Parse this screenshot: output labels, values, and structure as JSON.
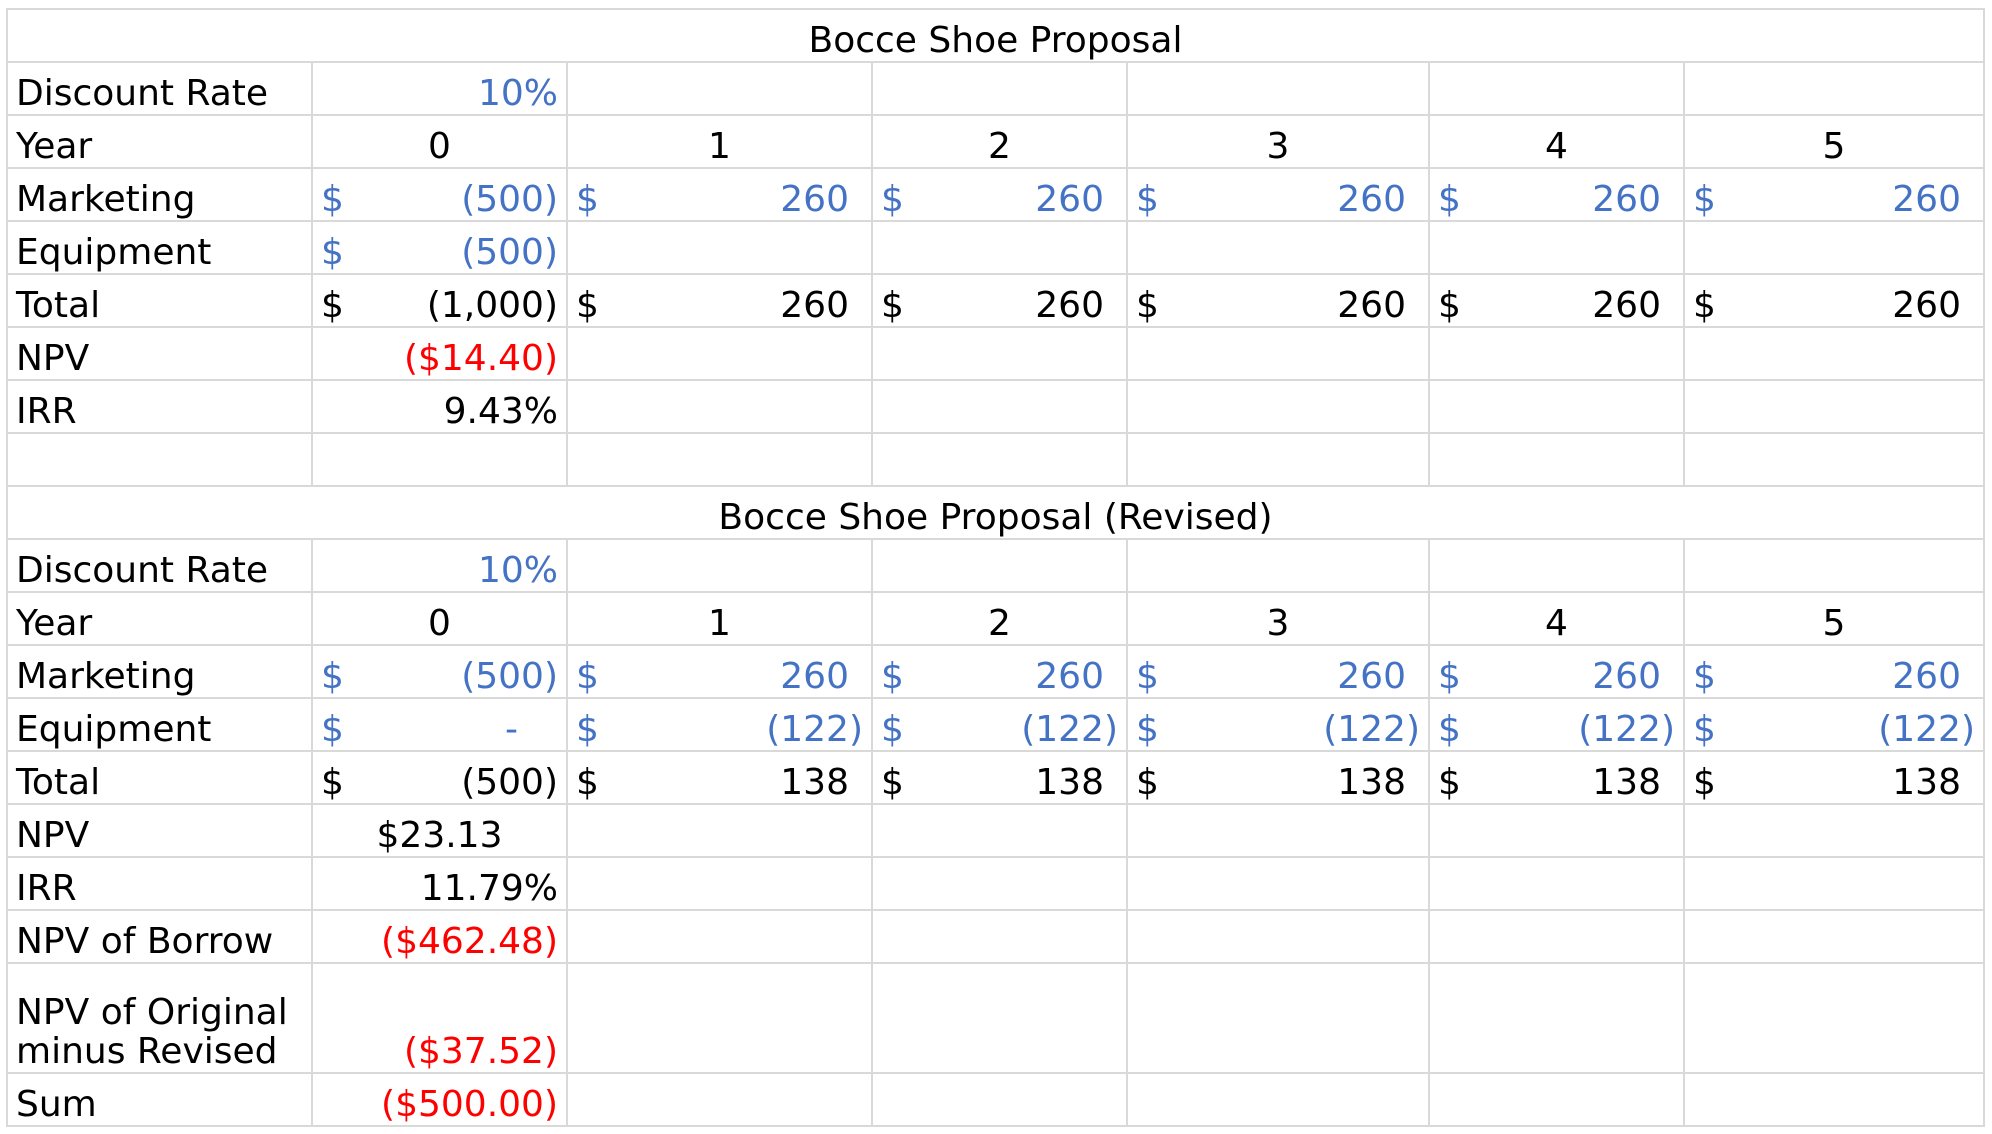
{
  "colors": {
    "input": "#4472c4",
    "negative": "#ff0000",
    "gridline": "#d9d9d9",
    "text": "#000000"
  },
  "original": {
    "title": "Bocce Shoe Proposal",
    "discount_label": "Discount Rate",
    "discount_rate": "10%",
    "year_label": "Year",
    "years": [
      "0",
      "1",
      "2",
      "3",
      "4",
      "5"
    ],
    "rows": [
      {
        "label": "Marketing",
        "style": "input",
        "cells": [
          {
            "cur": "$",
            "num": "(500)",
            "neg": true
          },
          {
            "cur": "$",
            "num": "260",
            "neg": false
          },
          {
            "cur": "$",
            "num": "260",
            "neg": false
          },
          {
            "cur": "$",
            "num": "260",
            "neg": false
          },
          {
            "cur": "$",
            "num": "260",
            "neg": false
          },
          {
            "cur": "$",
            "num": "260",
            "neg": false
          }
        ]
      },
      {
        "label": "Equipment",
        "style": "input",
        "cells": [
          {
            "cur": "$",
            "num": "(500)",
            "neg": true
          },
          null,
          null,
          null,
          null,
          null
        ]
      },
      {
        "label": "Total",
        "style": "calc",
        "cells": [
          {
            "cur": "$",
            "num": "(1,000)",
            "neg": true
          },
          {
            "cur": "$",
            "num": "260",
            "neg": false
          },
          {
            "cur": "$",
            "num": "260",
            "neg": false
          },
          {
            "cur": "$",
            "num": "260",
            "neg": false
          },
          {
            "cur": "$",
            "num": "260",
            "neg": false
          },
          {
            "cur": "$",
            "num": "260",
            "neg": false
          }
        ]
      }
    ],
    "summary": [
      {
        "label": "NPV",
        "value": "($14.40)",
        "color": "red"
      },
      {
        "label": "IRR",
        "value": "9.43%",
        "color": "black"
      }
    ]
  },
  "revised": {
    "title": "Bocce Shoe Proposal (Revised)",
    "discount_label": "Discount Rate",
    "discount_rate": "10%",
    "year_label": "Year",
    "years": [
      "0",
      "1",
      "2",
      "3",
      "4",
      "5"
    ],
    "rows": [
      {
        "label": "Marketing",
        "style": "input",
        "cells": [
          {
            "cur": "$",
            "num": "(500)",
            "neg": true
          },
          {
            "cur": "$",
            "num": "260",
            "neg": false
          },
          {
            "cur": "$",
            "num": "260",
            "neg": false
          },
          {
            "cur": "$",
            "num": "260",
            "neg": false
          },
          {
            "cur": "$",
            "num": "260",
            "neg": false
          },
          {
            "cur": "$",
            "num": "260",
            "neg": false
          }
        ]
      },
      {
        "label": "Equipment",
        "style": "input",
        "cells": [
          {
            "cur": "$",
            "num": "-",
            "neg": false,
            "dash": true
          },
          {
            "cur": "$",
            "num": "(122)",
            "neg": true
          },
          {
            "cur": "$",
            "num": "(122)",
            "neg": true
          },
          {
            "cur": "$",
            "num": "(122)",
            "neg": true
          },
          {
            "cur": "$",
            "num": "(122)",
            "neg": true
          },
          {
            "cur": "$",
            "num": "(122)",
            "neg": true
          }
        ]
      },
      {
        "label": "Total",
        "style": "calc",
        "cells": [
          {
            "cur": "$",
            "num": "(500)",
            "neg": true
          },
          {
            "cur": "$",
            "num": "138",
            "neg": false
          },
          {
            "cur": "$",
            "num": "138",
            "neg": false
          },
          {
            "cur": "$",
            "num": "138",
            "neg": false
          },
          {
            "cur": "$",
            "num": "138",
            "neg": false
          },
          {
            "cur": "$",
            "num": "138",
            "neg": false
          }
        ]
      }
    ],
    "summary": [
      {
        "label": "NPV",
        "value": "$23.13",
        "color": "black",
        "align": "center"
      },
      {
        "label": "IRR",
        "value": "11.79%",
        "color": "black"
      },
      {
        "label": "NPV of Borrow",
        "value": "($462.48)",
        "color": "red"
      },
      {
        "label": "NPV of Original minus Revised",
        "label_lines": [
          "NPV of Original",
          "minus Revised"
        ],
        "value": "($37.52)",
        "color": "red",
        "tall": true
      },
      {
        "label": "Sum",
        "value": "($500.00)",
        "color": "red"
      }
    ]
  }
}
